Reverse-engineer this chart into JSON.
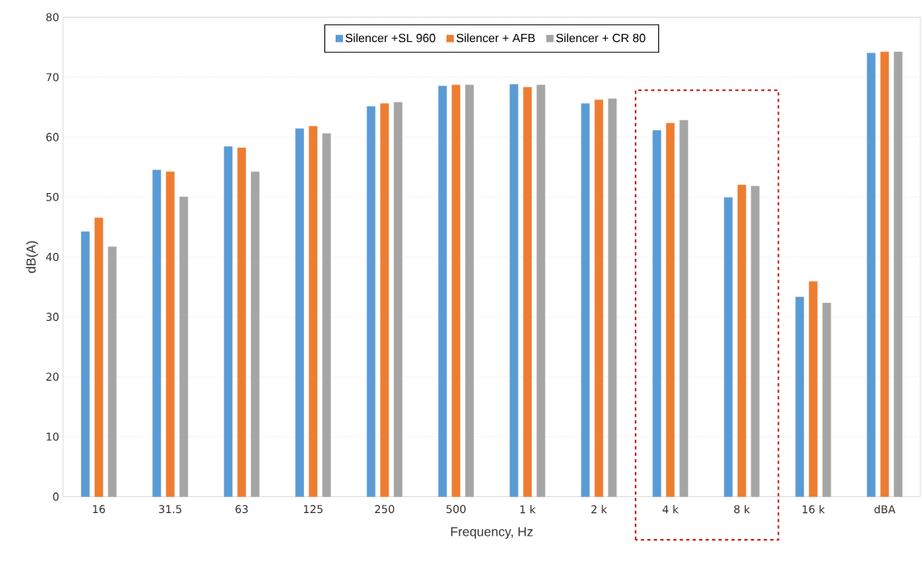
{
  "chart_data": {
    "type": "bar",
    "xlabel": "Frequency, Hz",
    "ylabel": "dB(A)",
    "categories": [
      "16",
      "31.5",
      "63",
      "125",
      "250",
      "500",
      "1 k",
      "2 k",
      "4 k",
      "8 k",
      "16 k",
      "dBA"
    ],
    "series": [
      {
        "name": "Silencer +SL 960",
        "color": "#5b9bd5",
        "values": [
          44.2,
          54.5,
          58.4,
          61.4,
          65.1,
          68.5,
          68.8,
          65.6,
          61.1,
          49.9,
          33.3,
          74.0
        ]
      },
      {
        "name": "Silencer + AFB",
        "color": "#ed7d31",
        "values": [
          46.5,
          54.2,
          58.2,
          61.8,
          65.6,
          68.7,
          68.3,
          66.2,
          62.3,
          52.0,
          35.9,
          74.2
        ]
      },
      {
        "name": "Silencer + CR 80",
        "color": "#a5a5a5",
        "values": [
          41.7,
          50.0,
          54.2,
          60.6,
          65.8,
          68.7,
          68.7,
          66.4,
          62.8,
          51.8,
          32.3,
          74.2
        ]
      }
    ],
    "ylim": [
      0,
      80
    ],
    "yticks": [
      0,
      10,
      20,
      30,
      40,
      50,
      60,
      70,
      80
    ],
    "grid": true,
    "legend": "top"
  }
}
